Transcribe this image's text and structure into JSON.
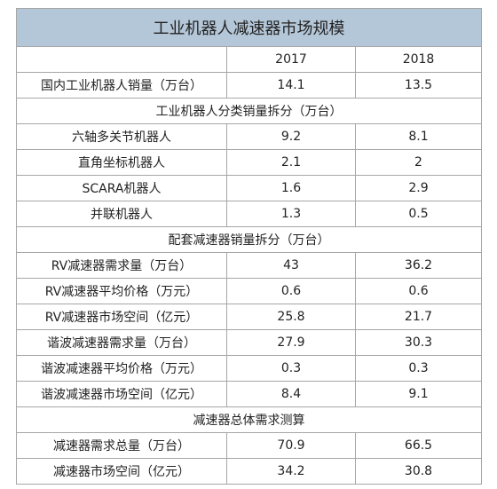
{
  "table": {
    "title": "工业机器人减速器市场规模",
    "years": [
      2017,
      2018
    ],
    "sections": [
      {
        "rows": [
          [
            "国内工业机器人销量（万台）",
            14.1,
            13.5
          ]
        ]
      },
      {
        "title": "工业机器人分类销量拆分（万台）",
        "rows": [
          [
            "六轴多关节机器人",
            9.2,
            8.1
          ],
          [
            "直角坐标机器人",
            2.1,
            2
          ],
          [
            "SCARA机器人",
            1.6,
            2.9
          ],
          [
            "并联机器人",
            1.3,
            0.5
          ]
        ]
      },
      {
        "title": "配套减速器销量拆分（万台）",
        "rows": [
          [
            "RV减速器需求量（万台）",
            43,
            36.2
          ],
          [
            "RV减速器平均价格（万元）",
            0.6,
            0.6
          ],
          [
            "RV减速器市场空间（亿元）",
            25.8,
            21.7
          ],
          [
            "谐波减速器需求量（万台）",
            27.9,
            30.3
          ],
          [
            "谐波减速器平均价格（万元）",
            0.3,
            0.3
          ],
          [
            "谐波减速器市场空间（亿元）",
            8.4,
            9.1
          ]
        ]
      },
      {
        "title": "减速器总体需求测算",
        "rows": [
          [
            "减速器需求总量（万台）",
            70.9,
            66.5
          ],
          [
            "减速器市场空间（亿元）",
            34.2,
            30.8
          ]
        ]
      }
    ]
  }
}
